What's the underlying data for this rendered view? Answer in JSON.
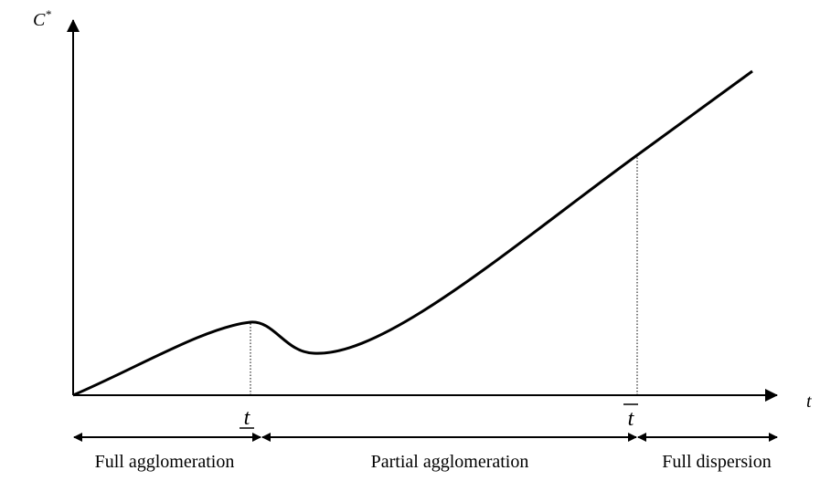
{
  "axes": {
    "y_label": "C",
    "y_label_superscript": "*",
    "x_label": "t"
  },
  "thresholds": {
    "lower": "t",
    "upper": "t"
  },
  "regions": [
    "Full agglomeration",
    "Partial agglomeration",
    "Full dispersion"
  ]
}
